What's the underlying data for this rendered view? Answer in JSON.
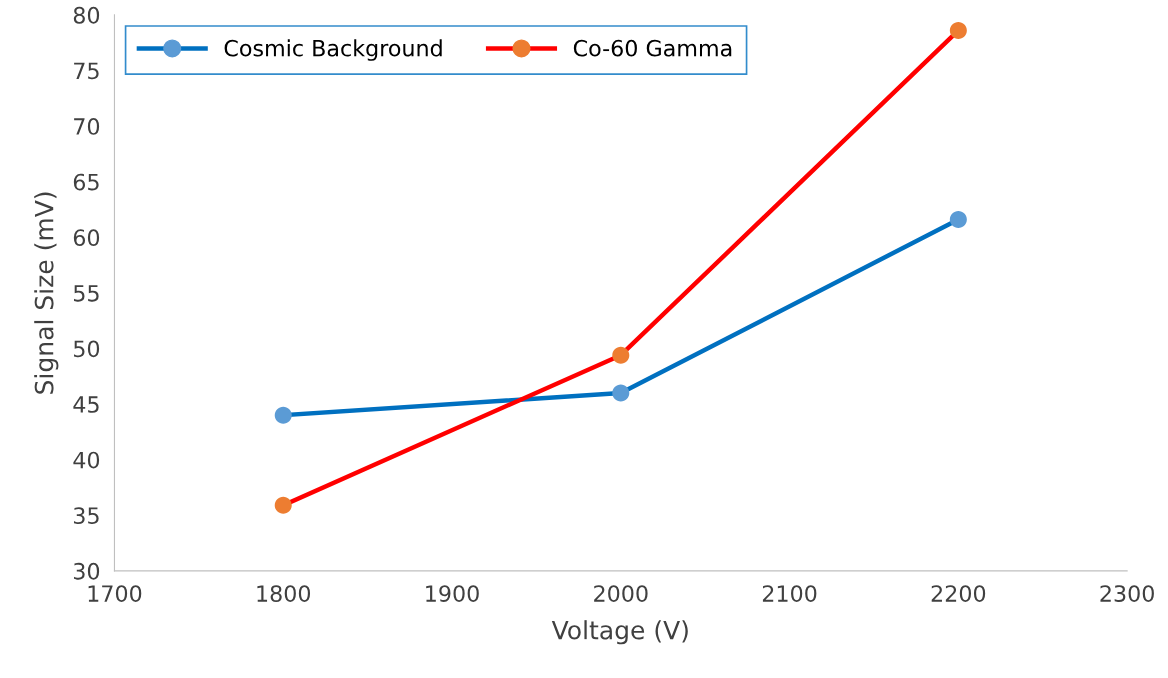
{
  "chart_data": {
    "type": "line",
    "xlabel": "Voltage (V)",
    "ylabel": "Signal Size (mV)",
    "x": [
      1800,
      2000,
      2200
    ],
    "series": [
      {
        "name": "Cosmic Background",
        "color": "#0070c0",
        "colors": [
          "#5b9bd5",
          "#5b9bd5",
          "#5b9bd5"
        ],
        "values": [
          44.0,
          46.0,
          61.6
        ]
      },
      {
        "name": "Co-60 Gamma",
        "color": "#ff0000",
        "colors": [
          "#ed7d31",
          "#ed7d31",
          "#ed7d31"
        ],
        "values": [
          35.9,
          49.4,
          78.6
        ]
      }
    ],
    "xlim": [
      1700,
      2300
    ],
    "xticks": [
      1700,
      1800,
      1900,
      2000,
      2100,
      2200,
      2300
    ],
    "ylim": [
      30,
      80
    ],
    "yticks": [
      30,
      35,
      40,
      45,
      50,
      55,
      60,
      65,
      70,
      75,
      80
    ],
    "grid": false,
    "legend": "top left",
    "marker": "circle",
    "line_style": "solid"
  }
}
